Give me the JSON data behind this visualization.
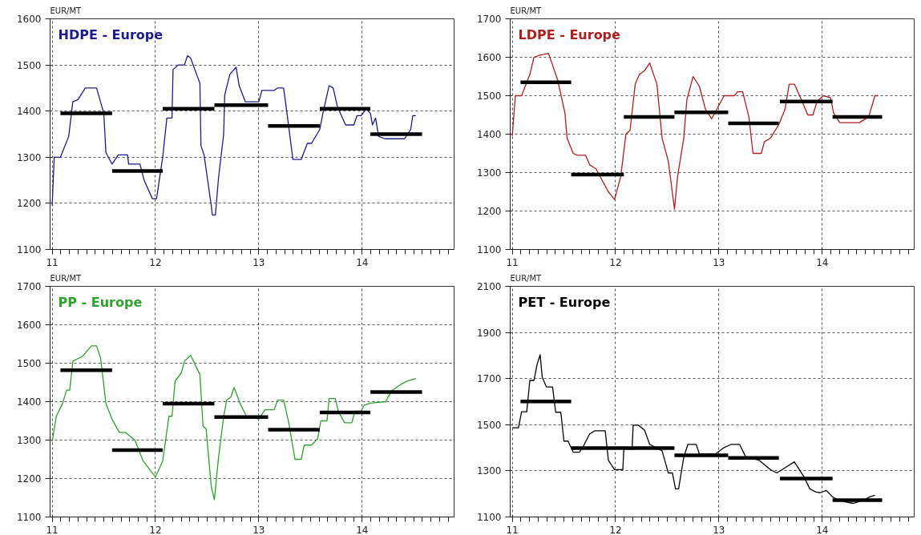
{
  "chart_data": [
    {
      "type": "line",
      "title": "HDPE - Europe",
      "ylabel": "EUR/MT",
      "xlim": [
        10.98,
        14.89
      ],
      "xticks": [
        11,
        12,
        13,
        14
      ],
      "ylim": [
        1100,
        1600
      ],
      "yticks": [
        1100,
        1200,
        1300,
        1400,
        1500,
        1600
      ],
      "grid": true,
      "series": [
        {
          "color": "#1c1c8a",
          "x": [
            11.0,
            11.02,
            11.08,
            11.16,
            11.2,
            11.25,
            11.32,
            11.43,
            11.5,
            11.52,
            11.58,
            11.64,
            11.73,
            11.74,
            11.85,
            11.89,
            11.97,
            12.01,
            12.07,
            12.11,
            12.16,
            12.17,
            12.22,
            12.28,
            12.31,
            12.34,
            12.43,
            12.44,
            12.47,
            12.54,
            12.55,
            12.58,
            12.61,
            12.66,
            12.67,
            12.72,
            12.78,
            12.81,
            12.87,
            13.0,
            13.03,
            13.15,
            13.18,
            13.24,
            13.27,
            13.33,
            13.41,
            13.47,
            13.51,
            13.59,
            13.62,
            13.68,
            13.72,
            13.76,
            13.84,
            13.92,
            13.95,
            13.99,
            14.04,
            14.08,
            14.1,
            14.13,
            14.16,
            14.22,
            14.41,
            14.47,
            14.49,
            14.52
          ],
          "values": [
            1195,
            1300,
            1300,
            1345,
            1420,
            1425,
            1450,
            1450,
            1395,
            1310,
            1285,
            1305,
            1305,
            1285,
            1285,
            1250,
            1210,
            1210,
            1300,
            1385,
            1385,
            1490,
            1500,
            1500,
            1520,
            1515,
            1460,
            1325,
            1305,
            1195,
            1175,
            1175,
            1255,
            1350,
            1435,
            1480,
            1495,
            1455,
            1420,
            1420,
            1445,
            1445,
            1450,
            1450,
            1400,
            1295,
            1295,
            1330,
            1330,
            1360,
            1395,
            1455,
            1450,
            1410,
            1370,
            1370,
            1390,
            1390,
            1405,
            1395,
            1370,
            1385,
            1345,
            1340,
            1340,
            1360,
            1390,
            1390
          ]
        },
        {
          "color": "#000000",
          "x": [
            11.08,
            11.58
          ],
          "values": [
            1395,
            1395
          ]
        },
        {
          "color": "#000000",
          "x": [
            11.58,
            12.07
          ],
          "values": [
            1270,
            1270
          ]
        },
        {
          "color": "#000000",
          "x": [
            12.07,
            12.57
          ],
          "values": [
            1405,
            1405
          ]
        },
        {
          "color": "#000000",
          "x": [
            12.57,
            13.09
          ],
          "values": [
            1413,
            1413
          ]
        },
        {
          "color": "#000000",
          "x": [
            13.09,
            13.59
          ],
          "values": [
            1368,
            1368
          ]
        },
        {
          "color": "#000000",
          "x": [
            13.59,
            14.08
          ],
          "values": [
            1405,
            1405
          ]
        },
        {
          "color": "#000000",
          "x": [
            14.08,
            14.58
          ],
          "values": [
            1350,
            1350
          ]
        }
      ]
    },
    {
      "type": "line",
      "title": "LDPE - Europe",
      "ylabel": "EUR/MT",
      "xlim": [
        10.98,
        14.89
      ],
      "xticks": [
        11,
        12,
        13,
        14
      ],
      "ylim": [
        1100,
        1700
      ],
      "yticks": [
        1100,
        1200,
        1300,
        1400,
        1500,
        1600,
        1700
      ],
      "grid": true,
      "series": [
        {
          "color": "#b01e1e",
          "x": [
            11.0,
            11.03,
            11.09,
            11.17,
            11.21,
            11.26,
            11.35,
            11.39,
            11.44,
            11.51,
            11.53,
            11.59,
            11.63,
            11.71,
            11.75,
            11.81,
            11.93,
            11.99,
            12.05,
            12.1,
            12.14,
            12.19,
            12.23,
            12.28,
            12.33,
            12.4,
            12.45,
            12.51,
            12.57,
            12.6,
            12.66,
            12.69,
            12.75,
            12.81,
            12.87,
            12.93,
            13.0,
            13.05,
            13.15,
            13.18,
            13.23,
            13.29,
            13.33,
            13.41,
            13.44,
            13.5,
            13.58,
            13.64,
            13.68,
            13.73,
            13.79,
            13.86,
            13.91,
            13.95,
            14.01,
            14.08,
            14.11,
            14.17,
            14.36,
            14.45,
            14.51,
            14.54
          ],
          "values": [
            1395,
            1500,
            1500,
            1555,
            1600,
            1605,
            1610,
            1580,
            1540,
            1455,
            1390,
            1350,
            1345,
            1345,
            1320,
            1310,
            1250,
            1230,
            1290,
            1400,
            1410,
            1530,
            1555,
            1565,
            1585,
            1530,
            1390,
            1330,
            1205,
            1290,
            1390,
            1490,
            1550,
            1525,
            1465,
            1440,
            1475,
            1500,
            1500,
            1510,
            1510,
            1445,
            1350,
            1350,
            1380,
            1390,
            1425,
            1465,
            1530,
            1530,
            1495,
            1450,
            1450,
            1485,
            1500,
            1495,
            1455,
            1430,
            1430,
            1445,
            1500,
            1500
          ]
        },
        {
          "color": "#000000",
          "x": [
            11.08,
            11.57
          ],
          "values": [
            1535,
            1535
          ]
        },
        {
          "color": "#000000",
          "x": [
            11.57,
            12.08
          ],
          "values": [
            1295,
            1295
          ]
        },
        {
          "color": "#000000",
          "x": [
            12.08,
            12.57
          ],
          "values": [
            1445,
            1445
          ]
        },
        {
          "color": "#000000",
          "x": [
            12.57,
            13.09
          ],
          "values": [
            1457,
            1457
          ]
        },
        {
          "color": "#000000",
          "x": [
            13.09,
            13.58
          ],
          "values": [
            1428,
            1428
          ]
        },
        {
          "color": "#000000",
          "x": [
            13.59,
            14.1
          ],
          "values": [
            1485,
            1485
          ]
        },
        {
          "color": "#000000",
          "x": [
            14.1,
            14.58
          ],
          "values": [
            1445,
            1445
          ]
        }
      ]
    },
    {
      "type": "line",
      "title": "PP - Europe",
      "ylabel": "EUR/MT",
      "xlim": [
        10.98,
        14.89
      ],
      "xticks": [
        11,
        12,
        13,
        14
      ],
      "ylim": [
        1100,
        1700
      ],
      "yticks": [
        1100,
        1200,
        1300,
        1400,
        1500,
        1600,
        1700
      ],
      "grid": true,
      "series": [
        {
          "color": "#2ea12e",
          "x": [
            11.0,
            11.04,
            11.1,
            11.14,
            11.17,
            11.2,
            11.25,
            11.29,
            11.38,
            11.43,
            11.47,
            11.52,
            11.58,
            11.65,
            11.71,
            11.8,
            11.88,
            12.0,
            12.07,
            12.13,
            12.16,
            12.19,
            12.25,
            12.28,
            12.34,
            12.43,
            12.46,
            12.49,
            12.54,
            12.57,
            12.61,
            12.66,
            12.69,
            12.73,
            12.76,
            12.82,
            12.88,
            12.94,
            13.0,
            13.06,
            13.15,
            13.18,
            13.24,
            13.29,
            13.35,
            13.41,
            13.44,
            13.51,
            13.57,
            13.6,
            13.66,
            13.68,
            13.74,
            13.77,
            13.83,
            13.9,
            13.93,
            13.99,
            14.02,
            14.08,
            14.23,
            14.25,
            14.29,
            14.38,
            14.44,
            14.52
          ],
          "values": [
            1296,
            1362,
            1395,
            1430,
            1430,
            1505,
            1512,
            1517,
            1545,
            1545,
            1512,
            1395,
            1354,
            1320,
            1320,
            1300,
            1246,
            1204,
            1246,
            1362,
            1362,
            1454,
            1475,
            1505,
            1521,
            1470,
            1337,
            1329,
            1179,
            1145,
            1254,
            1362,
            1404,
            1412,
            1437,
            1395,
            1362,
            1362,
            1354,
            1379,
            1379,
            1404,
            1404,
            1345,
            1250,
            1250,
            1287,
            1287,
            1304,
            1350,
            1350,
            1408,
            1408,
            1375,
            1345,
            1345,
            1375,
            1375,
            1391,
            1396,
            1400,
            1412,
            1429,
            1446,
            1454,
            1460
          ]
        },
        {
          "color": "#000000",
          "x": [
            11.08,
            11.58
          ],
          "values": [
            1482,
            1482
          ]
        },
        {
          "color": "#000000",
          "x": [
            11.58,
            12.07
          ],
          "values": [
            1274,
            1274
          ]
        },
        {
          "color": "#000000",
          "x": [
            12.07,
            12.57
          ],
          "values": [
            1395,
            1395
          ]
        },
        {
          "color": "#000000",
          "x": [
            12.57,
            13.09
          ],
          "values": [
            1360,
            1360
          ]
        },
        {
          "color": "#000000",
          "x": [
            13.09,
            13.59
          ],
          "values": [
            1327,
            1327
          ]
        },
        {
          "color": "#000000",
          "x": [
            13.59,
            14.08
          ],
          "values": [
            1372,
            1372
          ]
        },
        {
          "color": "#000000",
          "x": [
            14.08,
            14.58
          ],
          "values": [
            1425,
            1425
          ]
        }
      ]
    },
    {
      "type": "line",
      "title": "PET - Europe",
      "ylabel": "EUR/MT",
      "xlim": [
        10.98,
        14.89
      ],
      "xticks": [
        11,
        12,
        13,
        14
      ],
      "ylim": [
        1100,
        2100
      ],
      "yticks": [
        1100,
        1300,
        1500,
        1700,
        1900,
        2100
      ],
      "grid": true,
      "series": [
        {
          "color": "#000000",
          "x": [
            11.0,
            11.06,
            11.09,
            11.14,
            11.17,
            11.21,
            11.24,
            11.27,
            11.29,
            11.33,
            11.39,
            11.42,
            11.47,
            11.5,
            11.54,
            11.59,
            11.65,
            11.69,
            11.75,
            11.8,
            11.9,
            11.93,
            11.99,
            12.07,
            12.08,
            12.16,
            12.17,
            12.22,
            12.28,
            12.33,
            12.45,
            12.51,
            12.55,
            12.58,
            12.61,
            12.66,
            12.7,
            12.78,
            12.81,
            12.97,
            13.05,
            13.12,
            13.2,
            13.26,
            13.39,
            13.5,
            13.56,
            13.61,
            13.65,
            13.73,
            13.82,
            13.88,
            13.94,
            13.98,
            14.04,
            14.1,
            14.16,
            14.22,
            14.3,
            14.4,
            14.46,
            14.51
          ],
          "values": [
            1487,
            1487,
            1556,
            1556,
            1692,
            1692,
            1761,
            1803,
            1706,
            1664,
            1664,
            1554,
            1554,
            1429,
            1429,
            1381,
            1381,
            1409,
            1460,
            1474,
            1474,
            1346,
            1305,
            1305,
            1395,
            1395,
            1498,
            1498,
            1477,
            1415,
            1387,
            1291,
            1291,
            1222,
            1222,
            1360,
            1415,
            1415,
            1374,
            1374,
            1401,
            1415,
            1415,
            1360,
            1346,
            1305,
            1291,
            1305,
            1316,
            1339,
            1277,
            1222,
            1208,
            1205,
            1215,
            1187,
            1173,
            1166,
            1159,
            1173,
            1187,
            1194
          ]
        },
        {
          "color": "#000000",
          "x": [
            11.08,
            11.57
          ],
          "values": [
            1601,
            1601
          ]
        },
        {
          "color": "#000000",
          "x": [
            11.57,
            12.57
          ],
          "values": [
            1399,
            1399
          ]
        },
        {
          "color": "#000000",
          "x": [
            12.57,
            13.09
          ],
          "values": [
            1367,
            1367
          ]
        },
        {
          "color": "#000000",
          "x": [
            13.09,
            13.58
          ],
          "values": [
            1356,
            1356
          ]
        },
        {
          "color": "#000000",
          "x": [
            13.59,
            14.1
          ],
          "values": [
            1267,
            1267
          ]
        },
        {
          "color": "#000000",
          "x": [
            14.1,
            14.58
          ],
          "values": [
            1173,
            1173
          ]
        }
      ]
    }
  ]
}
